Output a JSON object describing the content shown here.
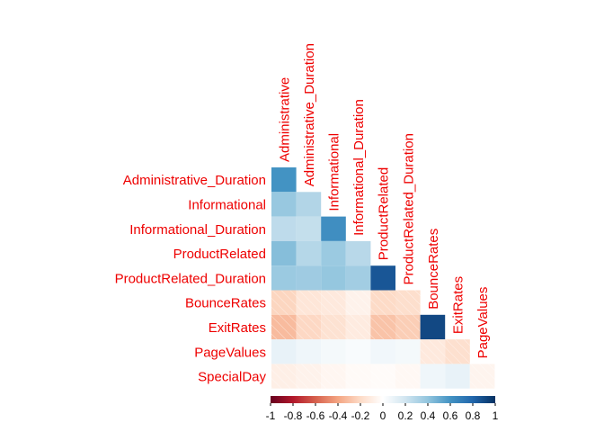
{
  "chart_data": {
    "type": "heatmap",
    "title": "",
    "layout": "lower-triangle",
    "row_labels": [
      "Administrative_Duration",
      "Informational",
      "Informational_Duration",
      "ProductRelated",
      "ProductRelated_Duration",
      "BounceRates",
      "ExitRates",
      "PageValues",
      "SpecialDay"
    ],
    "column_labels": [
      "Administrative",
      "Administrative_Duration",
      "Informational",
      "Informational_Duration",
      "ProductRelated",
      "ProductRelated_Duration",
      "BounceRates",
      "ExitRates",
      "PageValues"
    ],
    "values": [
      [
        0.6
      ],
      [
        0.38,
        0.3
      ],
      [
        0.26,
        0.24,
        0.62
      ],
      [
        0.43,
        0.29,
        0.37,
        0.28
      ],
      [
        0.37,
        0.36,
        0.39,
        0.35,
        0.86
      ],
      [
        -0.22,
        -0.14,
        -0.12,
        -0.07,
        -0.2,
        -0.18
      ],
      [
        -0.32,
        -0.21,
        -0.16,
        -0.11,
        -0.29,
        -0.25,
        0.91
      ],
      [
        0.1,
        0.07,
        0.05,
        0.03,
        0.06,
        0.05,
        -0.12,
        -0.17
      ],
      [
        -0.09,
        -0.07,
        -0.05,
        -0.03,
        -0.02,
        -0.04,
        0.07,
        0.1,
        -0.06
      ]
    ],
    "colorbar": {
      "range": [
        -1,
        1
      ],
      "tick_labels": [
        "-1",
        "-0.8",
        "-0.6",
        "-0.4",
        "-0.2",
        "0",
        "0.2",
        "0.4",
        "0.6",
        "0.8",
        "1"
      ],
      "colors": [
        "#67001f",
        "#b2182b",
        "#d6604d",
        "#f4a582",
        "#fddbc7",
        "#ffffff",
        "#d1e5f0",
        "#92c5de",
        "#4393c3",
        "#2166ac",
        "#053061"
      ]
    },
    "label_color": "#ee0000"
  }
}
